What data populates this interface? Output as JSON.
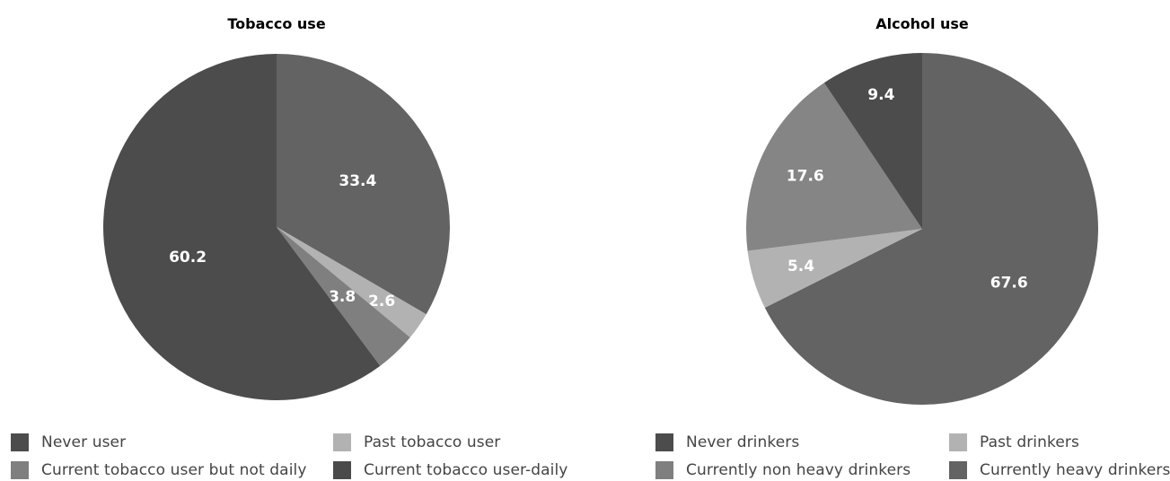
{
  "chart_data": [
    {
      "type": "pie",
      "title": "Tobacco use",
      "slices": [
        {
          "label": "Current tobacco user but not daily",
          "value": 33.4,
          "value_label": "33.4",
          "color": "#636363"
        },
        {
          "label": "Past tobacco user",
          "value": 2.6,
          "value_label": "2.6",
          "color": "#b2b2b2"
        },
        {
          "label": "Current tobacco user-daily",
          "value": 3.8,
          "value_label": "3.8",
          "color": "#7f7f7f"
        },
        {
          "label": "Never user",
          "value": 60.2,
          "value_label": "60.2",
          "color": "#4c4c4c"
        }
      ],
      "legend": [
        {
          "label": "Never user",
          "color": "#4c4c4c"
        },
        {
          "label": "Past tobacco user",
          "color": "#b2b2b2"
        },
        {
          "label": "Current tobacco user but not daily",
          "color": "#7f7f7f"
        },
        {
          "label": "Current tobacco user-daily",
          "color": "#4a4a4a"
        }
      ]
    },
    {
      "type": "pie",
      "title": "Alcohol use",
      "slices": [
        {
          "label": "Currently heavy drinkers",
          "value": 67.6,
          "value_label": "67.6",
          "color": "#636363"
        },
        {
          "label": "Past drinkers",
          "value": 5.4,
          "value_label": "5.4",
          "color": "#b2b2b2"
        },
        {
          "label": "Currently non heavy drinkers",
          "value": 17.6,
          "value_label": "17.6",
          "color": "#858585"
        },
        {
          "label": "Never drinkers",
          "value": 9.4,
          "value_label": "9.4",
          "color": "#4c4c4c"
        }
      ],
      "legend": [
        {
          "label": "Never drinkers",
          "color": "#4c4c4c"
        },
        {
          "label": "Past drinkers",
          "color": "#b2b2b2"
        },
        {
          "label": "Currently non heavy drinkers",
          "color": "#7f7f7f"
        },
        {
          "label": "Currently heavy drinkers",
          "color": "#636363"
        }
      ]
    }
  ]
}
